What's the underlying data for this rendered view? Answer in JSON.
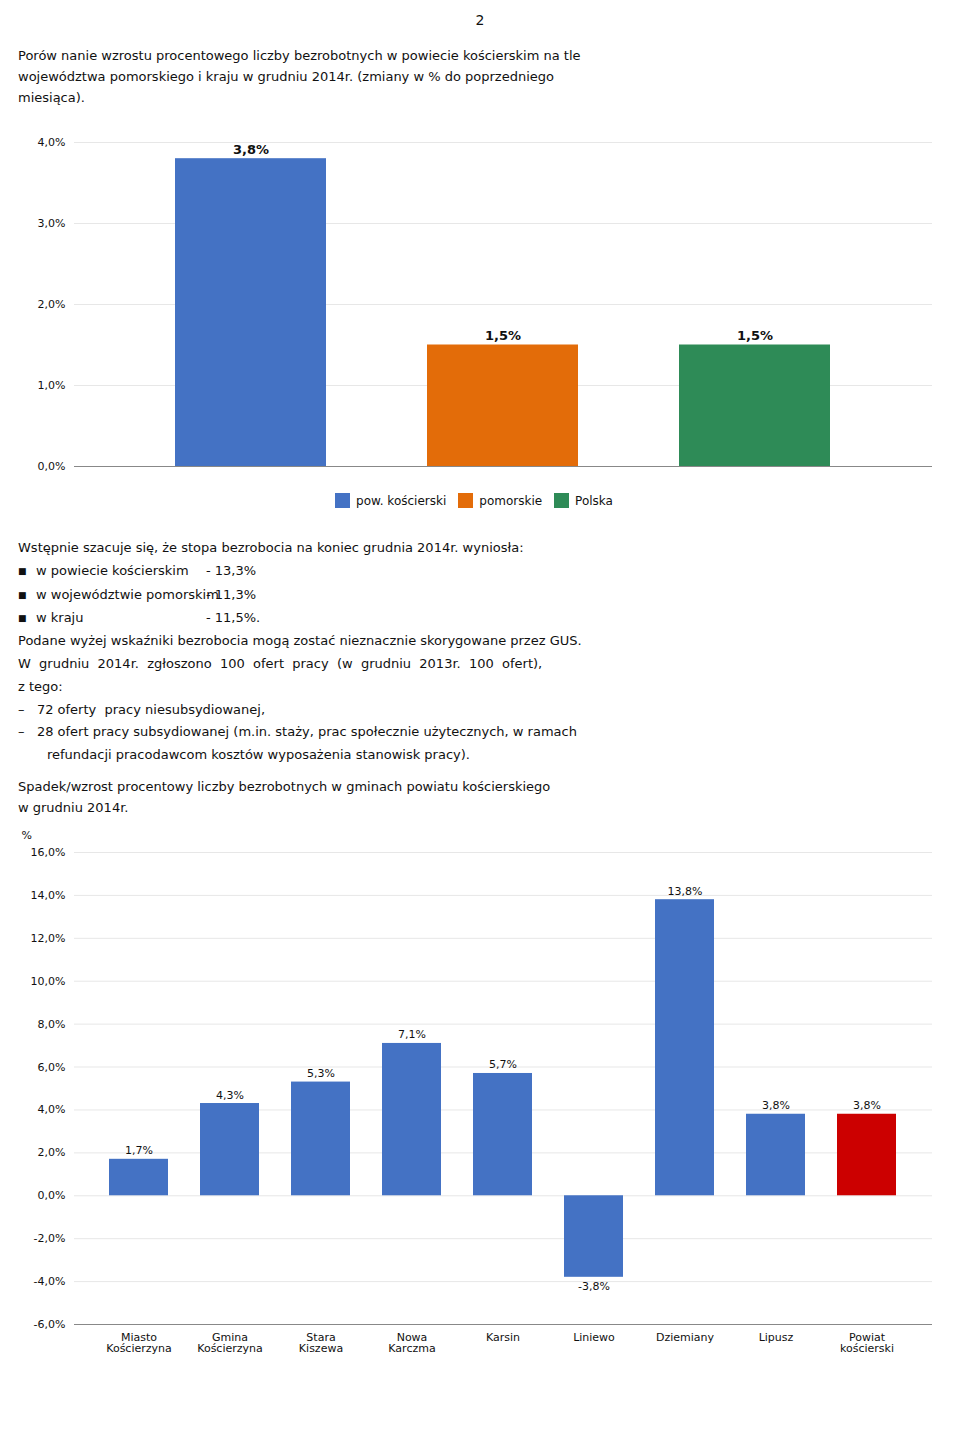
{
  "page_number": "2",
  "chart_data": [
    {
      "type": "bar",
      "title": "Porów nanie wzrostu procentowego liczby bezrobotnych w powiecie kościerskim na tle\nwojewództwa pomorskiego i kraju w grudniu 2014r. (zmiany w % do poprzedniego\nmiesiąca).",
      "categories": [
        "pow. kościerski",
        "pomorskie",
        "Polska"
      ],
      "values": [
        3.8,
        1.5,
        1.5
      ],
      "value_labels": [
        "3,8%",
        "1,5%",
        "1,5%"
      ],
      "colors": [
        "#4472c4",
        "#e36c09",
        "#2e8b57"
      ],
      "ylim": [
        0.0,
        4.0
      ],
      "yticks": [
        {
          "value": 0.0,
          "label": "0,0%"
        },
        {
          "value": 1.0,
          "label": "1,0%"
        },
        {
          "value": 2.0,
          "label": "2,0%"
        },
        {
          "value": 3.0,
          "label": "3,0%"
        },
        {
          "value": 4.0,
          "label": "4,0%"
        }
      ],
      "grid": true,
      "data_labels": true,
      "tick_labels": "y",
      "legend": "bottom",
      "annotations": [
        "Wstępnie szacuje się, że stopa bezrobocia na koniec grudnia 2014r. wyniosła:",
        [
          "■",
          "w powiecie kościerskim",
          "- 13,3%"
        ],
        [
          "■",
          "w województwie pomorskim",
          "- 11,3%"
        ],
        [
          "■",
          "w kraju",
          "- 11,5%."
        ],
        "Podane wyżej wskaźniki bezrobocia mogą zostać nieznacznie skorygowane przez GUS.",
        "W  grudniu  2014r.  zgłoszono  100  ofert  pracy  (w  grudniu  2013r.  100  ofert),",
        "z tego:",
        "–   72 oferty  pracy niesubsydiowanej,",
        "–   28 ofert pracy subsydiowanej (m.in. staży, prac społecznie użytecznych, w ramach",
        "       refundacji pracodawcom kosztów wyposażenia stanowisk pracy)."
      ]
    },
    {
      "type": "bar",
      "title": "Spadek/wzrost procentowy liczby bezrobotnych w gminach powiatu kościerskiego\nw grudniu 2014r.",
      "categories": [
        "Miasto\nKościerzyna",
        "Gmina\nKościerzyna",
        "Stara\nKiszewa",
        "Nowa\nKarczma",
        "Karsin",
        "Liniewo",
        "Dziemiany",
        "Lipusz",
        "Powiat\nkościerski"
      ],
      "values": [
        1.7,
        4.3,
        5.3,
        7.1,
        5.7,
        -3.8,
        13.8,
        3.8,
        3.8
      ],
      "value_labels": [
        "1,7%",
        "4,3%",
        "5,3%",
        "7,1%",
        "5,7%",
        "-3,8%",
        "13,8%",
        "3,8%",
        "3,8%"
      ],
      "colors": [
        "#4472c4",
        "#4472c4",
        "#4472c4",
        "#4472c4",
        "#4472c4",
        "#4472c4",
        "#4472c4",
        "#4472c4",
        "#cc0000"
      ],
      "y_label": "%",
      "ylim": [
        -6.0,
        16.0
      ],
      "yticks": [
        {
          "value": -6.0,
          "label": "-6,0%"
        },
        {
          "value": -4.0,
          "label": "-4,0%"
        },
        {
          "value": -2.0,
          "label": "-2,0%"
        },
        {
          "value": 0.0,
          "label": "0,0%"
        },
        {
          "value": 2.0,
          "label": "2,0%"
        },
        {
          "value": 4.0,
          "label": "4,0%"
        },
        {
          "value": 6.0,
          "label": "6,0%"
        },
        {
          "value": 8.0,
          "label": "8,0%"
        },
        {
          "value": 10.0,
          "label": "10,0%"
        },
        {
          "value": 12.0,
          "label": "12,0%"
        },
        {
          "value": 14.0,
          "label": "14,0%"
        },
        {
          "value": 16.0,
          "label": "16,0%"
        }
      ],
      "grid": true,
      "data_labels": true
    }
  ]
}
